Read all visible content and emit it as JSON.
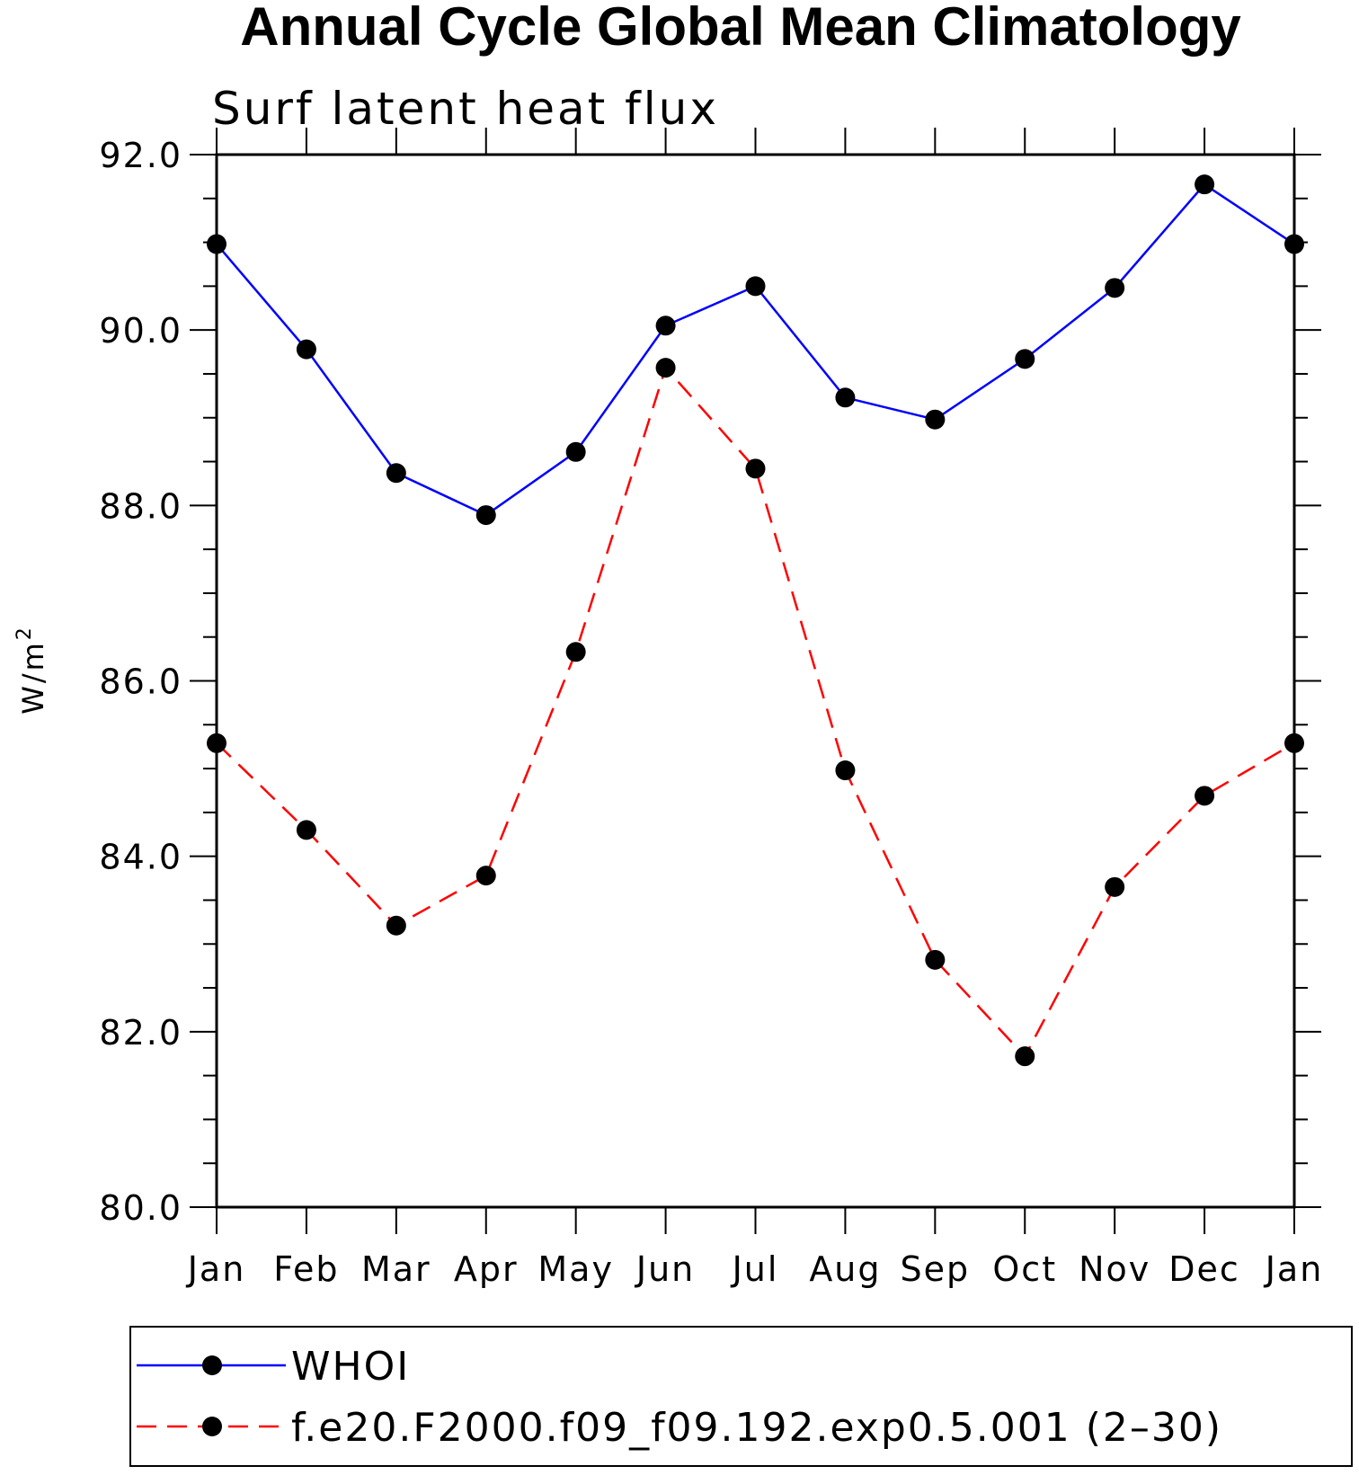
{
  "chart_data": {
    "type": "line",
    "title": "Annual Cycle Global Mean Climatology",
    "subtitle": "Surf latent heat flux",
    "ylabel": "W/m",
    "ylabel_sup": "2",
    "xlabel": "",
    "categories": [
      "Jan",
      "Feb",
      "Mar",
      "Apr",
      "May",
      "Jun",
      "Jul",
      "Aug",
      "Sep",
      "Oct",
      "Nov",
      "Dec",
      "Jan"
    ],
    "ylim": [
      80.0,
      92.0
    ],
    "yticks": [
      "80.0",
      "82.0",
      "84.0",
      "86.0",
      "88.0",
      "90.0",
      "92.0"
    ],
    "ytick_values": [
      80,
      82,
      84,
      86,
      88,
      90,
      92
    ],
    "grid": false,
    "legend_position": "bottom",
    "series": [
      {
        "name": "WHOI",
        "color": "#0000ff",
        "style": "solid",
        "values": [
          90.98,
          89.78,
          88.37,
          87.89,
          88.61,
          90.05,
          90.5,
          89.23,
          88.98,
          89.67,
          90.48,
          91.66,
          90.98
        ]
      },
      {
        "name": "f.e20.F2000.f09_f09.192.exp0.5.001 (2–30)",
        "color": "#ff0000",
        "style": "dashed",
        "values": [
          85.29,
          84.3,
          83.21,
          83.78,
          86.33,
          89.57,
          88.42,
          84.98,
          82.82,
          81.72,
          83.65,
          84.69,
          85.29
        ]
      }
    ]
  }
}
